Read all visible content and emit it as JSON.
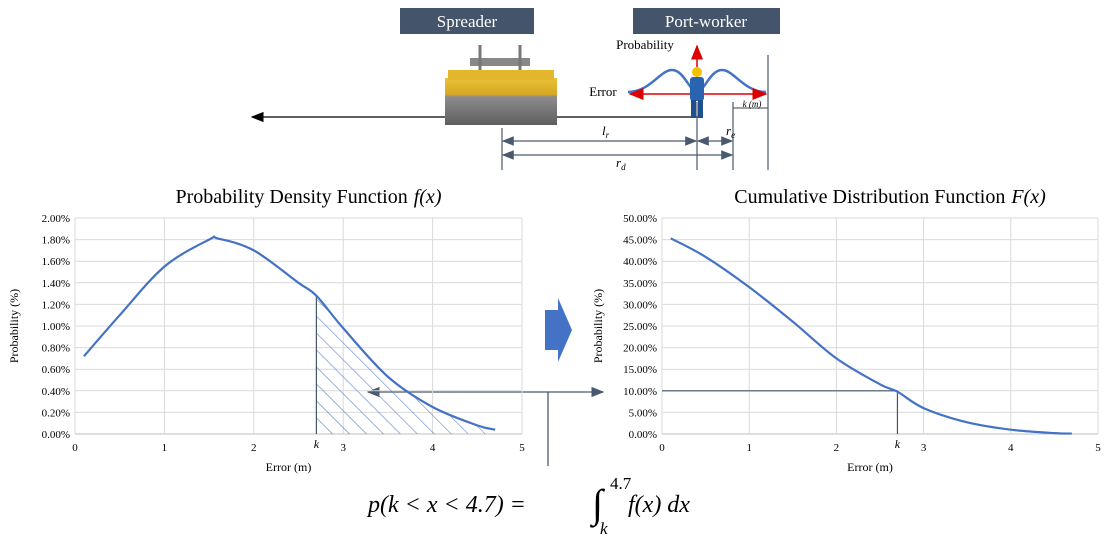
{
  "diagram": {
    "spreader": "Spreader",
    "port_worker": "Port-worker",
    "probability": "Probability",
    "error": "Error",
    "k_m": "k (m)",
    "lr": {
      "symbol": "l",
      "sub": "r"
    },
    "re": {
      "symbol": "r",
      "sub": "e"
    },
    "rd": {
      "symbol": "r",
      "sub": "d"
    }
  },
  "chart_data": [
    {
      "type": "line",
      "title": "Probability Density Function",
      "title_math": "f(x)",
      "x_label": "Error (m)",
      "y_label": "Probability (%)",
      "x": [
        0.1,
        0.5,
        1,
        1.5,
        1.6,
        2,
        2.5,
        2.7,
        3,
        3.5,
        4,
        4.5,
        4.7
      ],
      "series": [
        {
          "name": "f(x)",
          "color": "#4472c4",
          "values": [
            0.72,
            1.1,
            1.55,
            1.8,
            1.81,
            1.7,
            1.4,
            1.28,
            0.98,
            0.53,
            0.25,
            0.08,
            0.04
          ]
        }
      ],
      "xlim": [
        0,
        5
      ],
      "xticks": [
        0,
        1,
        2,
        3,
        4,
        5
      ],
      "ylim": [
        0,
        2
      ],
      "yticks": [
        {
          "value": 0,
          "label": "0.00%"
        },
        {
          "value": 0.2,
          "label": "0.20%"
        },
        {
          "value": 0.4,
          "label": "0.40%"
        },
        {
          "value": 0.6,
          "label": "0.60%"
        },
        {
          "value": 0.8,
          "label": "0.80%"
        },
        {
          "value": 1,
          "label": "1.00%"
        },
        {
          "value": 1.2,
          "label": "1.20%"
        },
        {
          "value": 1.4,
          "label": "1.40%"
        },
        {
          "value": 1.6,
          "label": "1.60%"
        },
        {
          "value": 1.8,
          "label": "1.80%"
        },
        {
          "value": 2,
          "label": "2.00%"
        }
      ],
      "grid": true,
      "marker": {
        "label": "k",
        "x": 2.7,
        "y": 1.28
      },
      "shaded": true
    },
    {
      "type": "line",
      "title": "Cumulative Distribution Function",
      "title_math": "F(x)",
      "x_label": "Error (m)",
      "y_label": "Probability (%)",
      "x": [
        0.1,
        0.5,
        1,
        1.5,
        2,
        2.5,
        2.7,
        3,
        3.5,
        4,
        4.5,
        4.7
      ],
      "series": [
        {
          "name": "F(x)",
          "color": "#4472c4",
          "values": [
            45.3,
            41,
            34,
            26,
            17.5,
            11.5,
            9.8,
            6,
            2.7,
            1,
            0.2,
            0.1
          ]
        }
      ],
      "xlim": [
        0,
        5
      ],
      "xticks": [
        0,
        1,
        2,
        3,
        4,
        5
      ],
      "ylim": [
        0,
        50
      ],
      "yticks": [
        {
          "value": 0,
          "label": "0.00%"
        },
        {
          "value": 5,
          "label": "5.00%"
        },
        {
          "value": 10,
          "label": "10.00%"
        },
        {
          "value": 15,
          "label": "15.00%"
        },
        {
          "value": 20,
          "label": "20.00%"
        },
        {
          "value": 25,
          "label": "25.00%"
        },
        {
          "value": 30,
          "label": "30.00%"
        },
        {
          "value": 35,
          "label": "35.00%"
        },
        {
          "value": 40,
          "label": "40.00%"
        },
        {
          "value": 45,
          "label": "45.00%"
        },
        {
          "value": 50,
          "label": "50.00%"
        }
      ],
      "grid": true,
      "marker": {
        "label": "k",
        "x": 2.7,
        "y": 10
      },
      "shaded": false
    }
  ],
  "formula": {
    "lhs": "p(k < x < 4.7) =",
    "upper": "4.7",
    "lower": "k",
    "integrand": "f(x) dx"
  }
}
